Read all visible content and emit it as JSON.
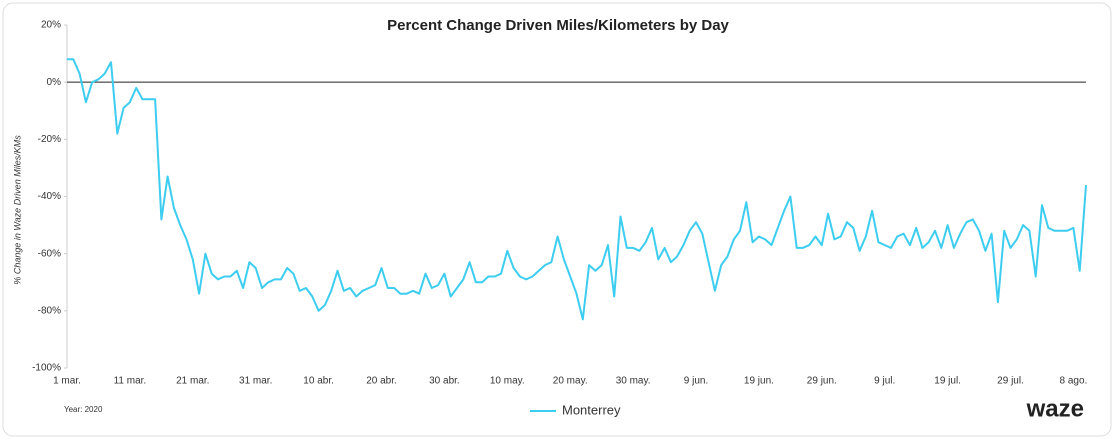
{
  "chart_data": {
    "type": "line",
    "title": "Percent Change Driven Miles/Kilometers by Day",
    "ylabel": "% Change in Waze Driven Miles/KMs",
    "note": "Year: 2020",
    "logo": "waze",
    "categories": [
      "1 mar.",
      null,
      null,
      null,
      null,
      null,
      null,
      null,
      null,
      null,
      "11 mar.",
      null,
      null,
      null,
      null,
      null,
      null,
      null,
      null,
      null,
      "21 mar.",
      null,
      null,
      null,
      null,
      null,
      null,
      null,
      null,
      null,
      "31 mar.",
      null,
      null,
      null,
      null,
      null,
      null,
      null,
      null,
      null,
      "10 abr.",
      null,
      null,
      null,
      null,
      null,
      null,
      null,
      null,
      null,
      "20 abr.",
      null,
      null,
      null,
      null,
      null,
      null,
      null,
      null,
      null,
      "30 abr.",
      null,
      null,
      null,
      null,
      null,
      null,
      null,
      null,
      null,
      "10 may.",
      null,
      null,
      null,
      null,
      null,
      null,
      null,
      null,
      null,
      "20 may.",
      null,
      null,
      null,
      null,
      null,
      null,
      null,
      null,
      null,
      "30 may.",
      null,
      null,
      null,
      null,
      null,
      null,
      null,
      null,
      null,
      "9 jun.",
      null,
      null,
      null,
      null,
      null,
      null,
      null,
      null,
      null,
      "19 jun.",
      null,
      null,
      null,
      null,
      null,
      null,
      null,
      null,
      null,
      "29 jun.",
      null,
      null,
      null,
      null,
      null,
      null,
      null,
      null,
      null,
      "9 jul.",
      null,
      null,
      null,
      null,
      null,
      null,
      null,
      null,
      null,
      "19 jul.",
      null,
      null,
      null,
      null,
      null,
      null,
      null,
      null,
      null,
      "29 jul.",
      null,
      null,
      null,
      null,
      null,
      null,
      null,
      null,
      null,
      "8 ago.",
      null,
      null
    ],
    "series": [
      {
        "name": "Monterrey",
        "color": "#3dcdf0",
        "values": [
          8,
          8,
          3,
          -7,
          0,
          1,
          3,
          7,
          -18,
          -9,
          -7,
          -2,
          -6,
          -6,
          -6,
          -48,
          -33,
          -44,
          -50,
          -55,
          -62,
          -74,
          -60,
          -67,
          -69,
          -68,
          -68,
          -66,
          -72,
          -63,
          -65,
          -72,
          -70,
          -69,
          -69,
          -65,
          -67,
          -73,
          -72,
          -75,
          -80,
          -78,
          -73,
          -66,
          -73,
          -72,
          -75,
          -73,
          -72,
          -71,
          -65,
          -72,
          -72,
          -74,
          -74,
          -73,
          -74,
          -67,
          -72,
          -71,
          -67,
          -75,
          -72,
          -69,
          -63,
          -70,
          -70,
          -68,
          -68,
          -67,
          -59,
          -65,
          -68,
          -69,
          -68,
          -66,
          -64,
          -63,
          -54,
          -62,
          -68,
          -74,
          -83,
          -64,
          -66,
          -64,
          -57,
          -75,
          -47,
          -58,
          -58,
          -59,
          -56,
          -51,
          -62,
          -58,
          -63,
          -61,
          -57,
          -52,
          -49,
          -53,
          -63,
          -73,
          -64,
          -61,
          -55,
          -52,
          -42,
          -56,
          -54,
          -55,
          -57,
          -51,
          -45,
          -40,
          -58,
          -58,
          -57,
          -54,
          -57,
          -46,
          -55,
          -54,
          -49,
          -51,
          -59,
          -54,
          -45,
          -56,
          -57,
          -58,
          -54,
          -53,
          -57,
          -51,
          -58,
          -56,
          -52,
          -58,
          -50,
          -58,
          -53,
          -49,
          -48,
          -52,
          -59,
          -53,
          -77,
          -52,
          -58,
          -55,
          -50,
          -52,
          -68,
          -43,
          -51,
          -52,
          -52,
          -52,
          -51,
          -66,
          -36
        ]
      }
    ],
    "ylim": [
      -100,
      20
    ],
    "yticks": [
      {
        "value": 20,
        "label": "20%"
      },
      {
        "value": 0,
        "label": "0%"
      },
      {
        "value": -20,
        "label": "-20%"
      },
      {
        "value": -40,
        "label": "-40%"
      },
      {
        "value": -60,
        "label": "-60%"
      },
      {
        "value": -80,
        "label": "-80%"
      },
      {
        "value": -100,
        "label": "-100%"
      }
    ],
    "zero_line": true
  }
}
